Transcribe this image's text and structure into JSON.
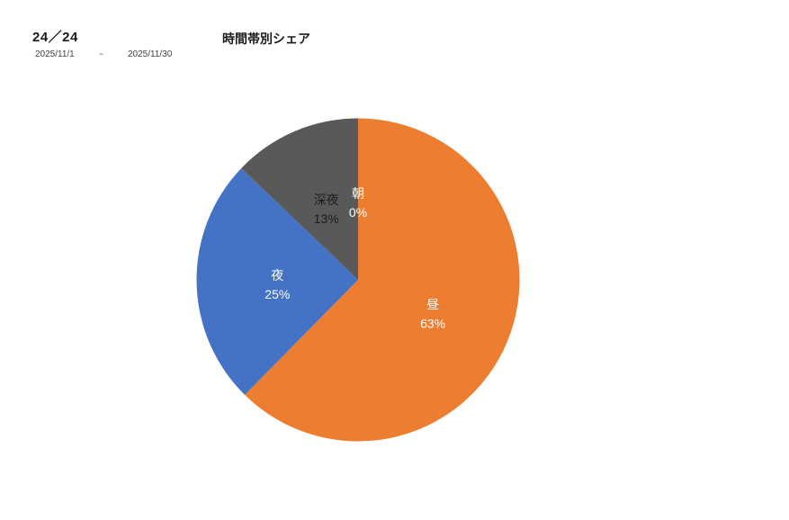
{
  "header": {
    "counter": "24／24",
    "date_from": "2025/11/1",
    "tilde": "~",
    "date_to": "2025/11/30"
  },
  "chart_data": {
    "type": "pie",
    "title": "時間帯別シェア",
    "legend": "none",
    "start_angle_deg": 0,
    "direction": "clockwise",
    "slices": [
      {
        "key": "asa",
        "label": "朝",
        "percent": 0,
        "percent_label": "0%",
        "color": null,
        "label_color": "#ffffff"
      },
      {
        "key": "hiru",
        "label": "昼",
        "percent": 63,
        "percent_label": "63%",
        "color": "#ED7D31",
        "label_color": "#ffffff"
      },
      {
        "key": "yoru",
        "label": "夜",
        "percent": 25,
        "percent_label": "25%",
        "color": "#4472C4",
        "label_color": "#ffffff"
      },
      {
        "key": "shinya",
        "label": "深夜",
        "percent": 13,
        "percent_label": "13%",
        "color": "#595959",
        "label_color": "#1a1a1a"
      }
    ]
  }
}
